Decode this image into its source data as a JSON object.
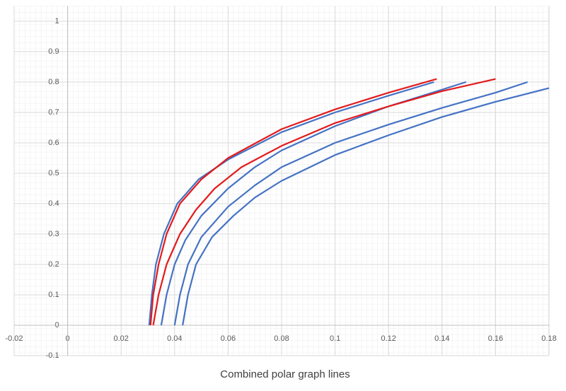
{
  "chart_data": {
    "type": "line",
    "title": "Combined polar graph lines",
    "xlim": [
      -0.02,
      0.18
    ],
    "xticks": [
      -0.02,
      0,
      0.02,
      0.04,
      0.06,
      0.08,
      0.1,
      0.12,
      0.14,
      0.16,
      0.18
    ],
    "ylim": [
      -0.1,
      1.05
    ],
    "yticks": [
      -0.1,
      0,
      0.1,
      0.2,
      0.3,
      0.4,
      0.5,
      0.6,
      0.7,
      0.8,
      0.9,
      1
    ],
    "grid": true,
    "series": [
      {
        "color": "#4472c4",
        "x": [
          0.0305,
          0.0315,
          0.033,
          0.036,
          0.041,
          0.049,
          0.06,
          0.08,
          0.1,
          0.12,
          0.137
        ],
        "values": [
          0,
          0.1,
          0.2,
          0.3,
          0.4,
          0.48,
          0.545,
          0.635,
          0.7,
          0.755,
          0.8
        ]
      },
      {
        "color": "#4472c4",
        "x": [
          0.035,
          0.037,
          0.04,
          0.044,
          0.05,
          0.06,
          0.07,
          0.08,
          0.1,
          0.12,
          0.14,
          0.149
        ],
        "values": [
          0,
          0.1,
          0.2,
          0.28,
          0.36,
          0.45,
          0.52,
          0.575,
          0.655,
          0.72,
          0.775,
          0.8
        ]
      },
      {
        "color": "#4472c4",
        "x": [
          0.04,
          0.042,
          0.045,
          0.05,
          0.06,
          0.07,
          0.08,
          0.1,
          0.12,
          0.14,
          0.16,
          0.172
        ],
        "values": [
          0,
          0.1,
          0.2,
          0.29,
          0.39,
          0.46,
          0.52,
          0.6,
          0.66,
          0.715,
          0.765,
          0.8
        ]
      },
      {
        "color": "#4472c4",
        "x": [
          0.043,
          0.045,
          0.048,
          0.054,
          0.062,
          0.07,
          0.08,
          0.1,
          0.12,
          0.14,
          0.16,
          0.18
        ],
        "values": [
          0,
          0.1,
          0.2,
          0.29,
          0.36,
          0.42,
          0.475,
          0.56,
          0.625,
          0.685,
          0.735,
          0.78
        ]
      },
      {
        "color": "#e31a1c",
        "x": [
          0.031,
          0.032,
          0.034,
          0.037,
          0.042,
          0.05,
          0.06,
          0.08,
          0.1,
          0.12,
          0.138
        ],
        "values": [
          0,
          0.1,
          0.2,
          0.3,
          0.4,
          0.48,
          0.55,
          0.645,
          0.71,
          0.765,
          0.81
        ]
      },
      {
        "color": "#e31a1c",
        "x": [
          0.032,
          0.034,
          0.037,
          0.042,
          0.048,
          0.055,
          0.065,
          0.08,
          0.1,
          0.12,
          0.14,
          0.16
        ],
        "values": [
          0,
          0.1,
          0.2,
          0.3,
          0.38,
          0.45,
          0.52,
          0.59,
          0.665,
          0.72,
          0.77,
          0.81
        ]
      }
    ]
  }
}
